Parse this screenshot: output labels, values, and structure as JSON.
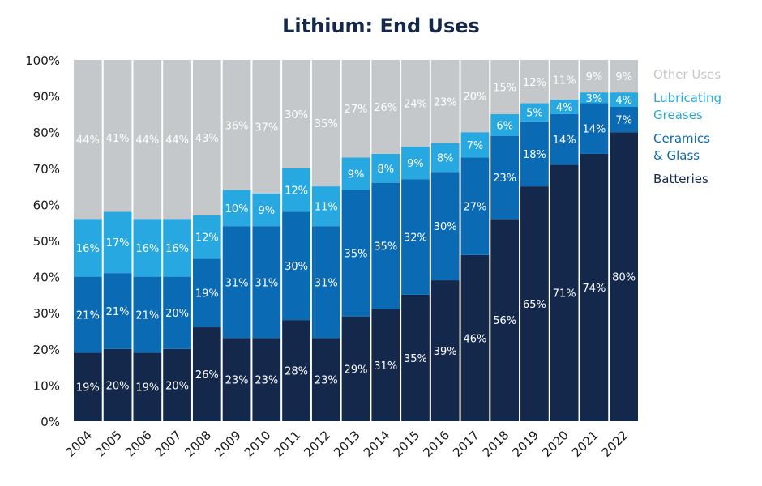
{
  "chart_data": {
    "type": "bar",
    "stacked": true,
    "title": "Lithium: End Uses",
    "xlabel": "",
    "ylabel": "",
    "ylim": [
      0,
      100
    ],
    "yticks": [
      "0%",
      "10%",
      "20%",
      "30%",
      "40%",
      "50%",
      "60%",
      "70%",
      "80%",
      "90%",
      "100%"
    ],
    "categories": [
      "2004",
      "2005",
      "2006",
      "2007",
      "2008",
      "2009",
      "2010",
      "2011",
      "2012",
      "2013",
      "2014",
      "2015",
      "2016",
      "2017",
      "2018",
      "2019",
      "2020",
      "2021",
      "2022"
    ],
    "series": [
      {
        "name": "Batteries",
        "color": "#14284b",
        "values": [
          19,
          20,
          19,
          20,
          26,
          23,
          23,
          28,
          23,
          29,
          31,
          35,
          39,
          46,
          56,
          65,
          71,
          74,
          80
        ],
        "labels": [
          "19%",
          "20%",
          "19%",
          "20%",
          "26%",
          "23%",
          "23%",
          "28%",
          "23%",
          "29%",
          "31%",
          "35%",
          "39%",
          "46%",
          "56%",
          "65%",
          "71%",
          "74%",
          "80%"
        ]
      },
      {
        "name": "Ceramics & Glass",
        "color": "#0b6ab4",
        "values": [
          21,
          21,
          21,
          20,
          19,
          31,
          31,
          30,
          31,
          35,
          35,
          32,
          30,
          27,
          23,
          18,
          14,
          14,
          7
        ],
        "labels": [
          "21%",
          "21%",
          "21%",
          "20%",
          "19%",
          "31%",
          "31%",
          "30%",
          "31%",
          "35%",
          "35%",
          "32%",
          "30%",
          "27%",
          "23%",
          "18%",
          "14%",
          "14%",
          "7%"
        ]
      },
      {
        "name": "Lubricating Greases",
        "color": "#27a8e0",
        "values": [
          16,
          17,
          16,
          16,
          12,
          10,
          9,
          12,
          11,
          9,
          8,
          9,
          8,
          7,
          6,
          5,
          4,
          3,
          4
        ],
        "labels": [
          "16%",
          "17%",
          "16%",
          "16%",
          "12%",
          "10%",
          "9%",
          "12%",
          "11%",
          "9%",
          "8%",
          "9%",
          "8%",
          "7%",
          "6%",
          "5%",
          "4%",
          "3%",
          "4%"
        ]
      },
      {
        "name": "Other Uses",
        "color": "#c4c8ca",
        "values": [
          44,
          41,
          44,
          44,
          43,
          36,
          37,
          30,
          35,
          27,
          26,
          24,
          23,
          20,
          15,
          12,
          11,
          9,
          9
        ],
        "labels": [
          "44%",
          "41%",
          "44%",
          "44%",
          "43%",
          "36%",
          "37%",
          "30%",
          "35%",
          "27%",
          "26%",
          "24%",
          "23%",
          "20%",
          "15%",
          "12%",
          "11%",
          "9%",
          "9%"
        ]
      }
    ],
    "legend": {
      "position": "right",
      "items": [
        {
          "lines": [
            "Other Uses"
          ],
          "color": "#c4c8ca"
        },
        {
          "lines": [
            "Lubricating",
            "Greases"
          ],
          "color": "#27a8e0"
        },
        {
          "lines": [
            "Ceramics",
            "& Glass"
          ],
          "color": "#0b6ab4"
        },
        {
          "lines": [
            "Batteries"
          ],
          "color": "#14284b"
        }
      ]
    },
    "grid": false
  }
}
